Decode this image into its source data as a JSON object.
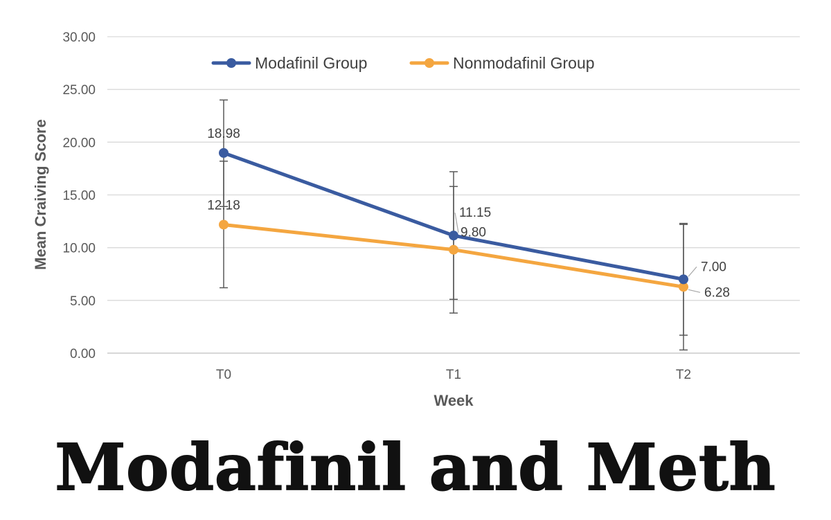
{
  "chart_data": {
    "type": "line",
    "title": "",
    "xlabel": "Week",
    "ylabel": "Mean  Craiving  Score",
    "categories": [
      "T0",
      "T1",
      "T2"
    ],
    "ylim": [
      0,
      30
    ],
    "yticks": [
      "0.00",
      "5.00",
      "10.00",
      "15.00",
      "20.00",
      "25.00",
      "30.00"
    ],
    "grid": true,
    "legend_position": "top",
    "series": [
      {
        "name": "Modafinil Group",
        "color": "#3a5ba0",
        "values": [
          18.98,
          11.15,
          7.0
        ],
        "labels": [
          "18.98",
          "11.15",
          "7.00"
        ],
        "error_upper": [
          24.0,
          17.2,
          12.3
        ],
        "error_lower": [
          13.9,
          5.1,
          1.7
        ]
      },
      {
        "name": "Nonmodafinil Group",
        "color": "#f4a640",
        "values": [
          12.18,
          9.8,
          6.28
        ],
        "labels": [
          "12.18",
          "9.80",
          "6.28"
        ],
        "error_upper": [
          18.2,
          15.8,
          12.2
        ],
        "error_lower": [
          6.2,
          3.8,
          0.3
        ]
      }
    ]
  },
  "banner": {
    "text": "Modafinil and Meth"
  }
}
